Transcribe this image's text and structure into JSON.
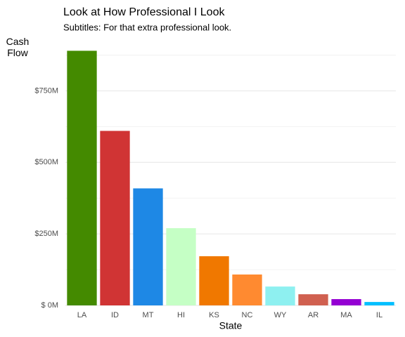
{
  "chart_data": {
    "type": "bar",
    "title": "Look at How Professional I Look",
    "subtitle": "Subtitles: For that extra professional look.",
    "x_label": "State",
    "y_label": "Cash Flow",
    "categories": [
      "LA",
      "ID",
      "MT",
      "HI",
      "KS",
      "NC",
      "WY",
      "AR",
      "MA",
      "IL"
    ],
    "values": [
      890000000,
      610000000,
      409000000,
      270000000,
      172000000,
      108000000,
      66000000,
      39000000,
      22000000,
      12000000
    ],
    "colors": [
      "#448a00",
      "#d03434",
      "#1e88e5",
      "#c5ffc5",
      "#f07800",
      "#ff8a30",
      "#8ef0f0",
      "#d06050",
      "#9400d3",
      "#00bfff"
    ],
    "ylim": [
      0,
      935000000
    ],
    "yticks": [
      {
        "value": 0,
        "label": "$ 0M"
      },
      {
        "value": 250000000,
        "label": "$250M"
      },
      {
        "value": 500000000,
        "label": "$500M"
      },
      {
        "value": 750000000,
        "label": "$750M"
      }
    ],
    "minor_yticks": [
      125000000,
      375000000,
      625000000,
      875000000
    ],
    "grid": true
  }
}
